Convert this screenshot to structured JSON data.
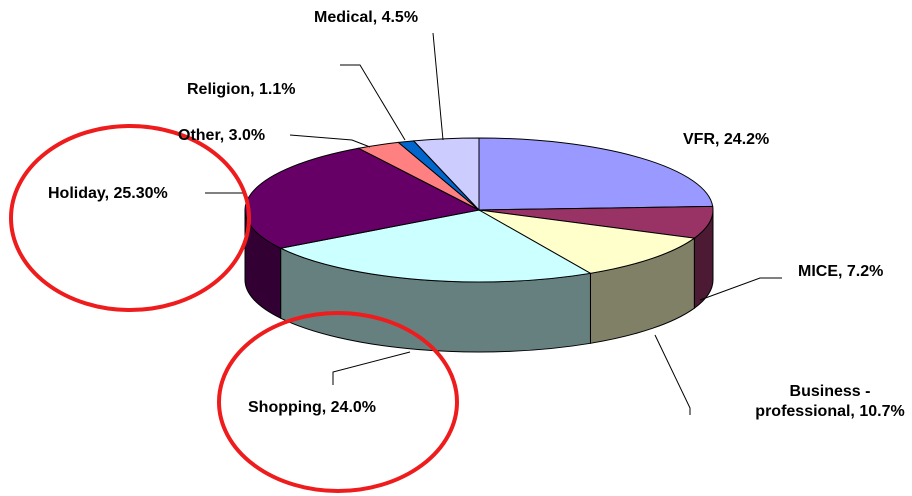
{
  "chart_data": {
    "type": "pie",
    "values": [
      24.2,
      7.2,
      10.7,
      24.0,
      25.3,
      3.0,
      1.1,
      4.5
    ],
    "value_labels": [
      "VFR, 24.2%",
      "MICE, 7.2%",
      "Business - professional, 10.7%",
      "Shopping, 24.0%",
      "Holiday, 25.30%",
      "Other, 3.0%",
      "Religion, 1.1%",
      "Medical, 4.5%"
    ],
    "colors": [
      "#9999ff",
      "#993366",
      "#ffffcc",
      "#ccffff",
      "#660066",
      "#ff8080",
      "#0066cc",
      "#ccccff"
    ]
  }
}
